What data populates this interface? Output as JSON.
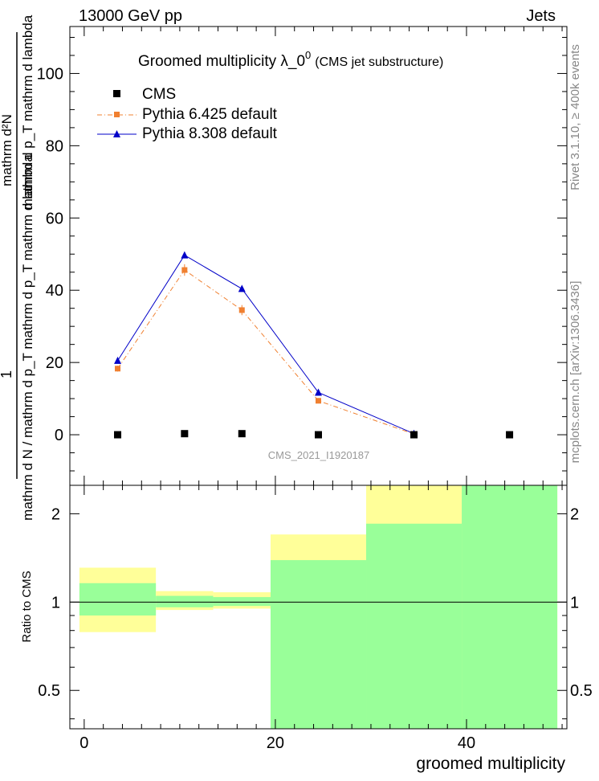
{
  "header": {
    "left": "13000 GeV pp",
    "right": "Jets"
  },
  "side_texts": {
    "rivet": "Rivet 3.1.10, ≥ 400k events",
    "mcplots": "mcplots.cern.ch [arXiv:1306.3436]"
  },
  "watermark": "CMS_2021_I1920187",
  "colors": {
    "cms": "#000000",
    "pythia6": "#f08030",
    "pythia8": "#0000c8",
    "band_green": "#99ff99",
    "band_yellow": "#ffff99"
  },
  "chart_data": [
    {
      "type": "line",
      "title": "Groomed multiplicity  λ_0⁰ (CMS jet substructure)",
      "title_parts": {
        "main": "Groomed multiplicity  λ_0",
        "sup": "0",
        "suffix": "(CMS jet substructure)"
      },
      "ylabel_parts": {
        "numerator": "1",
        "denominator": "mathrm d N / mathrm d p_T mathrm d p_T mathrm d lambda",
        "top": "mathrm d²N",
        "top_denominator": "mathrm d p_T mathrm d lambda"
      },
      "ylim": [
        -14,
        113
      ],
      "yticks": [
        0,
        20,
        40,
        60,
        80,
        100
      ],
      "xlim": [
        -1.5,
        50.5
      ],
      "legend_position": "top-left",
      "series": [
        {
          "name": "CMS",
          "marker": "square",
          "x": [
            3.5,
            10.5,
            16.5,
            24.5,
            34.5,
            44.5
          ],
          "y": [
            0.0,
            0.3,
            0.3,
            0.0,
            0.0,
            0.0
          ]
        },
        {
          "name": "Pythia 6.425 default",
          "marker": "square",
          "line": "dashdot",
          "x": [
            3.5,
            10.5,
            16.5,
            24.5,
            34.5
          ],
          "y": [
            18.3,
            45.6,
            34.5,
            9.4,
            0.2
          ],
          "err": [
            0.8,
            1.6,
            1.4,
            0.5,
            0.1
          ]
        },
        {
          "name": "Pythia 8.308 default",
          "marker": "triangle",
          "line": "solid",
          "x": [
            3.5,
            10.5,
            16.5,
            24.5,
            34.5
          ],
          "y": [
            20.5,
            49.7,
            40.4,
            11.7,
            0.3
          ]
        }
      ]
    },
    {
      "type": "area",
      "ylabel": "Ratio to CMS",
      "xlabel": "groomed multiplicity",
      "xlim": [
        -1.5,
        50.5
      ],
      "xticks": [
        0,
        20,
        40
      ],
      "ylim_log": [
        0.37,
        2.5
      ],
      "yticks": [
        0.5,
        1,
        2
      ],
      "ytick_labels": [
        "0.5",
        "1",
        "2"
      ],
      "reference_line": 1,
      "bins": [
        {
          "x0": -0.5,
          "x1": 7.5,
          "green": [
            0.9,
            1.16
          ],
          "yellow": [
            0.79,
            1.31
          ]
        },
        {
          "x0": 7.5,
          "x1": 13.5,
          "green": [
            0.96,
            1.05
          ],
          "yellow": [
            0.94,
            1.09
          ]
        },
        {
          "x0": 13.5,
          "x1": 19.5,
          "green": [
            0.97,
            1.04
          ],
          "yellow": [
            0.95,
            1.08
          ]
        },
        {
          "x0": 19.5,
          "x1": 29.5,
          "green": [
            0.37,
            1.39
          ],
          "yellow": [
            0.37,
            1.7
          ]
        },
        {
          "x0": 29.5,
          "x1": 39.5,
          "green": [
            0.37,
            1.85
          ],
          "yellow": [
            0.37,
            2.5
          ]
        },
        {
          "x0": 39.5,
          "x1": 49.5,
          "green": [
            0.37,
            2.5
          ],
          "yellow": [
            0.37,
            2.5
          ]
        }
      ]
    }
  ]
}
